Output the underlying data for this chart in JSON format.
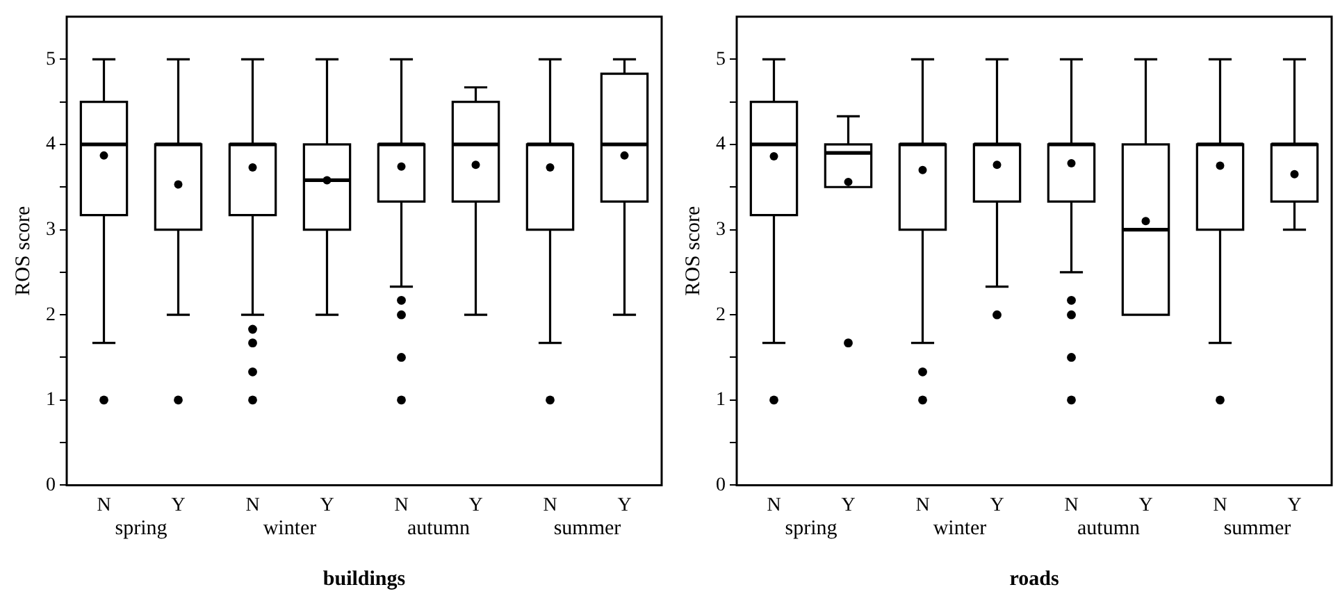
{
  "chart_data": [
    {
      "type": "box",
      "xlabel": "buildings",
      "ylabel": "ROS score",
      "categories": [
        "N",
        "Y",
        "N",
        "Y",
        "N",
        "Y",
        "N",
        "Y"
      ],
      "annotations": [
        "spring",
        "winter",
        "autumn",
        "summer"
      ],
      "ylim": [
        0,
        5.5
      ],
      "yticks": [
        0,
        {
          "value": 0.5,
          "label": null
        },
        1,
        {
          "value": 1.5,
          "label": null
        },
        2,
        {
          "value": 2.5,
          "label": null
        },
        3,
        {
          "value": 3.5,
          "label": null
        },
        4,
        {
          "value": 4.5,
          "label": null
        },
        5
      ],
      "grid": false,
      "legend": false,
      "color": "#000000",
      "boxes": [
        {
          "low": 1.67,
          "q1": 3.17,
          "median": 4,
          "q3": 4.5,
          "high": 5,
          "mean": 3.87,
          "outliers": [
            1
          ]
        },
        {
          "low": 2,
          "q1": 3,
          "median": 4,
          "q3": 4,
          "high": 5,
          "mean": 3.53,
          "outliers": [
            1
          ]
        },
        {
          "low": 2,
          "q1": 3.17,
          "median": 4,
          "q3": 4,
          "high": 5,
          "mean": 3.73,
          "outliers": [
            1.83,
            1.67,
            1.33,
            1
          ]
        },
        {
          "low": 2,
          "q1": 3,
          "median": 3.58,
          "q3": 4,
          "high": 5,
          "mean": 3.58
        },
        {
          "low": 2.33,
          "q1": 3.33,
          "median": 4,
          "q3": 4,
          "high": 5,
          "mean": 3.74,
          "outliers": [
            2.17,
            2,
            1.5,
            1
          ]
        },
        {
          "low": 2,
          "q1": 3.33,
          "median": 4,
          "q3": 4.5,
          "high": 4.67,
          "mean": 3.76
        },
        {
          "low": 1.67,
          "q1": 3,
          "median": 4,
          "q3": 4,
          "high": 5,
          "mean": 3.73,
          "outliers": [
            1
          ]
        },
        {
          "low": 2,
          "q1": 3.33,
          "median": 4,
          "q3": 4.83,
          "high": 5,
          "mean": 3.87
        }
      ]
    },
    {
      "type": "box",
      "xlabel": "roads",
      "ylabel": "ROS score",
      "categories": [
        "N",
        "Y",
        "N",
        "Y",
        "N",
        "Y",
        "N",
        "Y"
      ],
      "annotations": [
        "spring",
        "winter",
        "autumn",
        "summer"
      ],
      "ylim": [
        0,
        5.5
      ],
      "yticks": [
        0,
        {
          "value": 0.5,
          "label": null
        },
        1,
        {
          "value": 1.5,
          "label": null
        },
        2,
        {
          "value": 2.5,
          "label": null
        },
        3,
        {
          "value": 3.5,
          "label": null
        },
        4,
        {
          "value": 4.5,
          "label": null
        },
        5
      ],
      "grid": false,
      "legend": false,
      "color": "#000000",
      "boxes": [
        {
          "low": 1.67,
          "q1": 3.17,
          "median": 4,
          "q3": 4.5,
          "high": 5,
          "mean": 3.86,
          "outliers": [
            1
          ]
        },
        {
          "low": 3.5,
          "q1": 3.5,
          "median": 3.9,
          "q3": 4,
          "high": 4.33,
          "mean": 3.56,
          "outliers": [
            1.67
          ]
        },
        {
          "low": 1.67,
          "q1": 3,
          "median": 4,
          "q3": 4,
          "high": 5,
          "mean": 3.7,
          "outliers": [
            1.33,
            1
          ]
        },
        {
          "low": 2.33,
          "q1": 3.33,
          "median": 4,
          "q3": 4,
          "high": 5,
          "mean": 3.76,
          "outliers": [
            2
          ]
        },
        {
          "low": 2.5,
          "q1": 3.33,
          "median": 4,
          "q3": 4,
          "high": 5,
          "mean": 3.78,
          "outliers": [
            2.17,
            2,
            1.5,
            1
          ]
        },
        {
          "low": 2,
          "q1": 2,
          "median": 3,
          "q3": 4,
          "high": 5,
          "mean": 3.1
        },
        {
          "low": 1.67,
          "q1": 3,
          "median": 4,
          "q3": 4,
          "high": 5,
          "mean": 3.75,
          "outliers": [
            1
          ]
        },
        {
          "low": 3,
          "q1": 3.33,
          "median": 4,
          "q3": 4,
          "high": 5,
          "mean": 3.65
        }
      ]
    }
  ]
}
